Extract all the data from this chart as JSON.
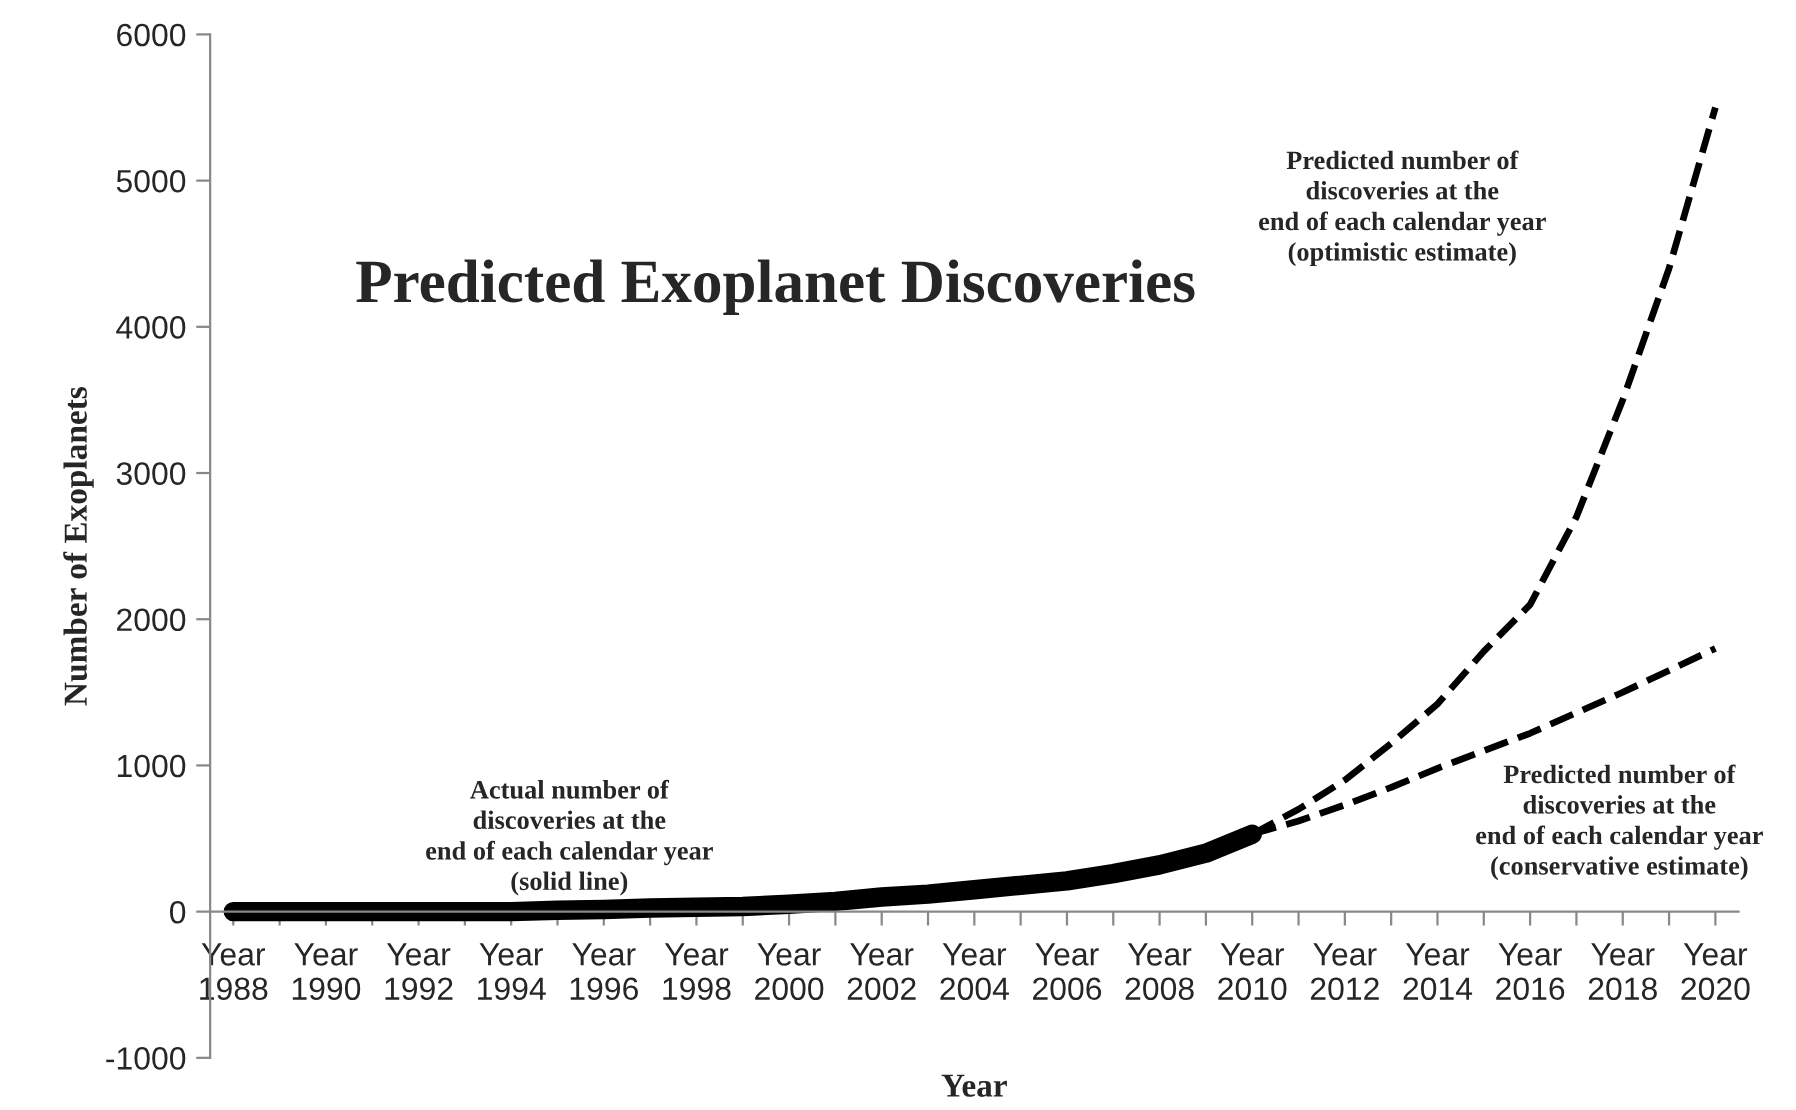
{
  "chart_data": {
    "type": "line",
    "title": "Predicted Exoplanet Discoveries",
    "xlabel": "Year",
    "ylabel": "Number of Exoplanets",
    "categories": [
      "Year\n1988",
      null,
      "Year\n1990",
      null,
      "Year\n1992",
      null,
      "Year\n1994",
      null,
      "Year\n1996",
      null,
      "Year\n1998",
      null,
      "Year\n2000",
      null,
      "Year\n2002",
      null,
      "Year\n2004",
      null,
      "Year\n2006",
      null,
      "Year\n2008",
      null,
      "Year\n2010",
      null,
      "Year\n2012",
      null,
      "Year\n2014",
      null,
      "Year\n2016",
      null,
      "Year\n2018",
      null,
      "Year\n2020"
    ],
    "series": [
      {
        "color": "#000000",
        "line_style": "solid",
        "values": [
          0,
          0,
          0,
          0,
          0,
          0,
          0,
          10,
          15,
          25,
          30,
          35,
          50,
          70,
          100,
          120,
          150,
          180,
          210,
          260,
          320,
          400,
          530,
          null,
          null,
          null,
          null,
          null,
          null,
          null,
          null,
          null,
          null
        ]
      },
      {
        "color": "#000000",
        "line_style": "dashed",
        "values": [
          null,
          null,
          null,
          null,
          null,
          null,
          null,
          null,
          null,
          null,
          null,
          null,
          null,
          null,
          null,
          null,
          null,
          null,
          null,
          null,
          null,
          null,
          530,
          700,
          900,
          1150,
          1420,
          1780,
          2100,
          2700,
          3500,
          4400,
          5500
        ]
      },
      {
        "color": "#000000",
        "line_style": "dashed",
        "values": [
          null,
          null,
          null,
          null,
          null,
          null,
          null,
          null,
          null,
          null,
          null,
          null,
          null,
          null,
          null,
          null,
          null,
          null,
          null,
          null,
          null,
          null,
          530,
          620,
          730,
          850,
          980,
          1100,
          1220,
          1360,
          1500,
          1650,
          1800
        ]
      }
    ],
    "annotations": [
      "Actual number of\ndiscoveries at the\nend of each calendar year\n(solid line)",
      "Predicted number of\ndiscoveries at the\nend of each calendar year\n(optimistic estimate)",
      "Predicted number of\ndiscoveries at the\nend of each calendar year\n(conservative estimate)"
    ],
    "ylim": [
      -1000,
      6000
    ],
    "yticks": [
      -1000,
      0,
      1000,
      2000,
      3000,
      4000,
      5000,
      6000
    ],
    "grid": false,
    "legend": false
  }
}
